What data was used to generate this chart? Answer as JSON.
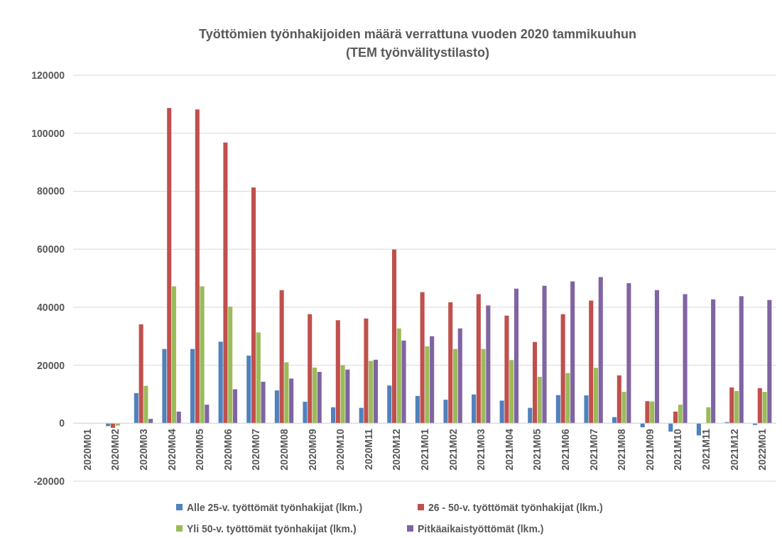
{
  "chart_data": {
    "type": "bar",
    "title": "Työttömien työnhakijoiden määrä verrattuna vuoden 2020 tammikuuhun",
    "subtitle": "(TEM työnvälitystilasto)",
    "categories": [
      "2020M01",
      "2020M02",
      "2020M03",
      "2020M04",
      "2020M05",
      "2020M06",
      "2020M07",
      "2020M08",
      "2020M09",
      "2020M10",
      "2020M11",
      "2020M12",
      "2021M01",
      "2021M02",
      "2021M03",
      "2021M04",
      "2021M05",
      "2021M06",
      "2021M07",
      "2021M08",
      "2021M09",
      "2021M10",
      "2021M11",
      "2021M12",
      "2022M01"
    ],
    "series": [
      {
        "name": "Alle 25-v. työttömät työnhakijat (lkm.)",
        "color": "#4f81bd",
        "values": [
          0,
          -1000,
          10400,
          25600,
          25600,
          28100,
          23300,
          11300,
          7400,
          5500,
          5300,
          13000,
          9400,
          8100,
          9900,
          7800,
          5300,
          9700,
          9600,
          2100,
          -1400,
          -2900,
          -4200,
          400,
          -600
        ]
      },
      {
        "name": "26 - 50-v. työttömät työnhakijat (lkm.)",
        "color": "#c0504d",
        "values": [
          0,
          -1600,
          34100,
          108700,
          108200,
          96800,
          81300,
          45900,
          37600,
          35500,
          36100,
          59900,
          45200,
          41700,
          44500,
          37100,
          28000,
          37600,
          42300,
          16500,
          7600,
          4000,
          0,
          12300,
          12100
        ]
      },
      {
        "name": "Yli 50-v. työttömät työnhakijat (lkm.)",
        "color": "#9bbb59",
        "values": [
          0,
          -800,
          12900,
          47200,
          47200,
          40200,
          31300,
          21000,
          19200,
          20000,
          21500,
          32700,
          26500,
          25600,
          25600,
          21800,
          16000,
          17300,
          19100,
          10800,
          7500,
          6400,
          5500,
          11100,
          10800
        ]
      },
      {
        "name": "Pitkäaikaistyöttömät (lkm.)",
        "color": "#8064a2",
        "values": [
          0,
          0,
          1500,
          4000,
          6400,
          11700,
          14300,
          15400,
          17700,
          18500,
          21900,
          28500,
          30000,
          32700,
          40600,
          46400,
          47400,
          48900,
          50400,
          48300,
          45900,
          44500,
          42700,
          43800,
          42500
        ]
      }
    ],
    "ylim": [
      -20000,
      120000
    ],
    "yticks": [
      -20000,
      0,
      20000,
      40000,
      60000,
      80000,
      100000,
      120000
    ],
    "grid": "y",
    "legend": "bottom"
  }
}
